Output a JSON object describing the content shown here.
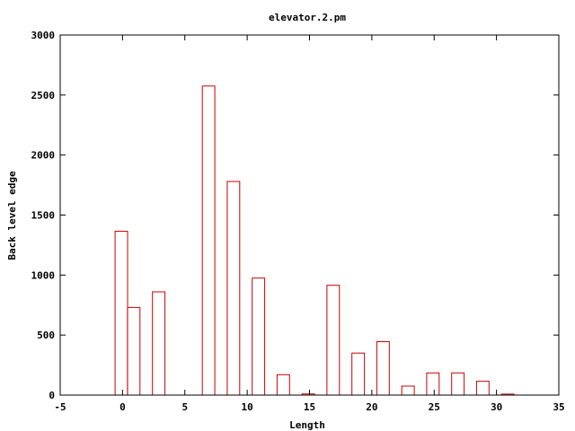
{
  "chart_data": {
    "type": "bar",
    "title": "elevator.2.pm",
    "xlabel": "Length",
    "ylabel": "Back level edge",
    "xlim": [
      -5,
      35
    ],
    "ylim": [
      0,
      3000
    ],
    "x_ticks": [
      -5,
      0,
      5,
      10,
      15,
      20,
      25,
      30,
      35
    ],
    "y_ticks": [
      0,
      500,
      1000,
      1500,
      2000,
      2500,
      3000
    ],
    "grid": false,
    "bar_color": "#cc0000",
    "bar_width": 1,
    "series": [
      {
        "x": [
          -0.1,
          0.9,
          2.9,
          6.9,
          8.9,
          10.9,
          12.9,
          14.9,
          16.9,
          18.9,
          20.9,
          22.9,
          24.9,
          26.9,
          28.9,
          30.9
        ],
        "values": [
          1365,
          730,
          860,
          2575,
          1780,
          975,
          170,
          10,
          915,
          350,
          445,
          75,
          185,
          185,
          115,
          8
        ]
      }
    ]
  }
}
